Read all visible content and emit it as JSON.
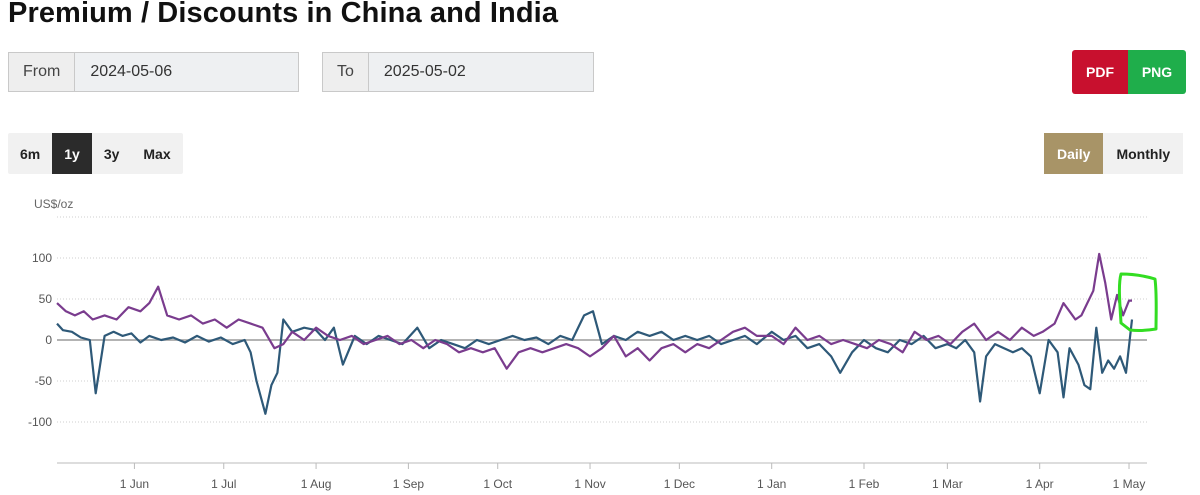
{
  "title": "Premium / Discounts in China and India",
  "date_range": {
    "from_label": "From",
    "from_value": "2024-05-06",
    "to_label": "To",
    "to_value": "2025-05-02"
  },
  "export": {
    "pdf_label": "PDF",
    "png_label": "PNG"
  },
  "range_buttons": [
    {
      "label": "6m",
      "active": false
    },
    {
      "label": "1y",
      "active": true
    },
    {
      "label": "3y",
      "active": false
    },
    {
      "label": "Max",
      "active": false
    }
  ],
  "frequency_buttons": [
    {
      "label": "Daily",
      "active": true
    },
    {
      "label": "Monthly",
      "active": false
    }
  ],
  "colors": {
    "series_a": "#2e5978",
    "series_b": "#7a3c8e",
    "annotation": "#33dd22"
  },
  "chart_data": {
    "type": "line",
    "title": "",
    "unit_label": "US$/oz",
    "ylim": [
      -130,
      150
    ],
    "yticks": [
      100,
      50,
      0,
      -50,
      -100
    ],
    "xlim": [
      "2024-05-06",
      "2025-05-02"
    ],
    "xticks": [
      {
        "date": "2024-06-01",
        "label": "1 Jun"
      },
      {
        "date": "2024-07-01",
        "label": "1 Jul"
      },
      {
        "date": "2024-08-01",
        "label": "1 Aug"
      },
      {
        "date": "2024-09-01",
        "label": "1 Sep"
      },
      {
        "date": "2024-10-01",
        "label": "1 Oct"
      },
      {
        "date": "2024-11-01",
        "label": "1 Nov"
      },
      {
        "date": "2024-12-01",
        "label": "1 Dec"
      },
      {
        "date": "2025-01-01",
        "label": "1 Jan"
      },
      {
        "date": "2025-02-01",
        "label": "1 Feb"
      },
      {
        "date": "2025-03-01",
        "label": "1 Mar"
      },
      {
        "date": "2025-04-01",
        "label": "1 Apr"
      },
      {
        "date": "2025-05-01",
        "label": "1 May"
      }
    ],
    "grid": true,
    "series": [
      {
        "color": "#2e5978",
        "points": [
          [
            "2024-05-06",
            20
          ],
          [
            "2024-05-08",
            12
          ],
          [
            "2024-05-11",
            10
          ],
          [
            "2024-05-14",
            3
          ],
          [
            "2024-05-17",
            0
          ],
          [
            "2024-05-19",
            -65
          ],
          [
            "2024-05-22",
            5
          ],
          [
            "2024-05-25",
            10
          ],
          [
            "2024-05-28",
            5
          ],
          [
            "2024-05-31",
            8
          ],
          [
            "2024-06-03",
            -3
          ],
          [
            "2024-06-06",
            5
          ],
          [
            "2024-06-10",
            0
          ],
          [
            "2024-06-14",
            3
          ],
          [
            "2024-06-18",
            -3
          ],
          [
            "2024-06-22",
            5
          ],
          [
            "2024-06-26",
            -2
          ],
          [
            "2024-06-30",
            3
          ],
          [
            "2024-07-04",
            -5
          ],
          [
            "2024-07-08",
            0
          ],
          [
            "2024-07-10",
            -15
          ],
          [
            "2024-07-12",
            -50
          ],
          [
            "2024-07-15",
            -90
          ],
          [
            "2024-07-17",
            -55
          ],
          [
            "2024-07-19",
            -40
          ],
          [
            "2024-07-21",
            25
          ],
          [
            "2024-07-24",
            10
          ],
          [
            "2024-07-28",
            15
          ],
          [
            "2024-08-01",
            12
          ],
          [
            "2024-08-04",
            0
          ],
          [
            "2024-08-07",
            15
          ],
          [
            "2024-08-10",
            -30
          ],
          [
            "2024-08-14",
            5
          ],
          [
            "2024-08-18",
            -5
          ],
          [
            "2024-08-22",
            5
          ],
          [
            "2024-08-26",
            0
          ],
          [
            "2024-08-30",
            -5
          ],
          [
            "2024-09-04",
            15
          ],
          [
            "2024-09-08",
            -10
          ],
          [
            "2024-09-12",
            0
          ],
          [
            "2024-09-16",
            -5
          ],
          [
            "2024-09-20",
            -10
          ],
          [
            "2024-09-24",
            0
          ],
          [
            "2024-09-28",
            -5
          ],
          [
            "2024-10-02",
            0
          ],
          [
            "2024-10-06",
            5
          ],
          [
            "2024-10-10",
            0
          ],
          [
            "2024-10-14",
            3
          ],
          [
            "2024-10-18",
            -5
          ],
          [
            "2024-10-22",
            5
          ],
          [
            "2024-10-26",
            0
          ],
          [
            "2024-10-30",
            30
          ],
          [
            "2024-11-02",
            35
          ],
          [
            "2024-11-05",
            -5
          ],
          [
            "2024-11-09",
            5
          ],
          [
            "2024-11-13",
            0
          ],
          [
            "2024-11-17",
            10
          ],
          [
            "2024-11-21",
            5
          ],
          [
            "2024-11-25",
            10
          ],
          [
            "2024-11-29",
            0
          ],
          [
            "2024-12-03",
            5
          ],
          [
            "2024-12-07",
            0
          ],
          [
            "2024-12-11",
            5
          ],
          [
            "2024-12-15",
            -5
          ],
          [
            "2024-12-19",
            0
          ],
          [
            "2024-12-23",
            5
          ],
          [
            "2024-12-27",
            -5
          ],
          [
            "2025-01-01",
            10
          ],
          [
            "2025-01-05",
            0
          ],
          [
            "2025-01-09",
            5
          ],
          [
            "2025-01-13",
            -10
          ],
          [
            "2025-01-17",
            -5
          ],
          [
            "2025-01-21",
            -20
          ],
          [
            "2025-01-24",
            -40
          ],
          [
            "2025-01-28",
            -15
          ],
          [
            "2025-02-01",
            0
          ],
          [
            "2025-02-05",
            -10
          ],
          [
            "2025-02-09",
            -15
          ],
          [
            "2025-02-13",
            0
          ],
          [
            "2025-02-17",
            -5
          ],
          [
            "2025-02-21",
            5
          ],
          [
            "2025-02-25",
            -10
          ],
          [
            "2025-03-01",
            -5
          ],
          [
            "2025-03-04",
            -10
          ],
          [
            "2025-03-07",
            0
          ],
          [
            "2025-03-10",
            -15
          ],
          [
            "2025-03-12",
            -75
          ],
          [
            "2025-03-14",
            -20
          ],
          [
            "2025-03-17",
            -5
          ],
          [
            "2025-03-20",
            -10
          ],
          [
            "2025-03-23",
            -15
          ],
          [
            "2025-03-26",
            -10
          ],
          [
            "2025-03-29",
            -20
          ],
          [
            "2025-04-01",
            -65
          ],
          [
            "2025-04-04",
            0
          ],
          [
            "2025-04-07",
            -15
          ],
          [
            "2025-04-09",
            -70
          ],
          [
            "2025-04-11",
            -10
          ],
          [
            "2025-04-14",
            -30
          ],
          [
            "2025-04-16",
            -55
          ],
          [
            "2025-04-18",
            -60
          ],
          [
            "2025-04-20",
            15
          ],
          [
            "2025-04-22",
            -40
          ],
          [
            "2025-04-24",
            -25
          ],
          [
            "2025-04-26",
            -35
          ],
          [
            "2025-04-28",
            -20
          ],
          [
            "2025-04-30",
            -40
          ],
          [
            "2025-05-02",
            25
          ]
        ]
      },
      {
        "color": "#7a3c8e",
        "points": [
          [
            "2024-05-06",
            45
          ],
          [
            "2024-05-09",
            35
          ],
          [
            "2024-05-12",
            30
          ],
          [
            "2024-05-15",
            35
          ],
          [
            "2024-05-18",
            25
          ],
          [
            "2024-05-22",
            30
          ],
          [
            "2024-05-26",
            25
          ],
          [
            "2024-05-30",
            40
          ],
          [
            "2024-06-03",
            35
          ],
          [
            "2024-06-06",
            45
          ],
          [
            "2024-06-09",
            65
          ],
          [
            "2024-06-12",
            30
          ],
          [
            "2024-06-16",
            25
          ],
          [
            "2024-06-20",
            30
          ],
          [
            "2024-06-24",
            20
          ],
          [
            "2024-06-28",
            25
          ],
          [
            "2024-07-02",
            15
          ],
          [
            "2024-07-06",
            25
          ],
          [
            "2024-07-10",
            20
          ],
          [
            "2024-07-14",
            15
          ],
          [
            "2024-07-18",
            -10
          ],
          [
            "2024-07-21",
            -5
          ],
          [
            "2024-07-24",
            10
          ],
          [
            "2024-07-28",
            0
          ],
          [
            "2024-08-01",
            15
          ],
          [
            "2024-08-05",
            5
          ],
          [
            "2024-08-09",
            0
          ],
          [
            "2024-08-13",
            5
          ],
          [
            "2024-08-17",
            -5
          ],
          [
            "2024-08-21",
            0
          ],
          [
            "2024-08-25",
            5
          ],
          [
            "2024-08-29",
            -5
          ],
          [
            "2024-09-02",
            0
          ],
          [
            "2024-09-06",
            -10
          ],
          [
            "2024-09-10",
            0
          ],
          [
            "2024-09-14",
            -5
          ],
          [
            "2024-09-18",
            -15
          ],
          [
            "2024-09-22",
            -10
          ],
          [
            "2024-09-26",
            -15
          ],
          [
            "2024-09-30",
            -10
          ],
          [
            "2024-10-04",
            -35
          ],
          [
            "2024-10-08",
            -15
          ],
          [
            "2024-10-12",
            -10
          ],
          [
            "2024-10-16",
            -15
          ],
          [
            "2024-10-20",
            -10
          ],
          [
            "2024-10-24",
            -5
          ],
          [
            "2024-10-28",
            -10
          ],
          [
            "2024-11-01",
            -20
          ],
          [
            "2024-11-05",
            -10
          ],
          [
            "2024-11-09",
            5
          ],
          [
            "2024-11-13",
            -20
          ],
          [
            "2024-11-17",
            -10
          ],
          [
            "2024-11-21",
            -25
          ],
          [
            "2024-11-25",
            -10
          ],
          [
            "2024-11-29",
            -5
          ],
          [
            "2024-12-03",
            -15
          ],
          [
            "2024-12-07",
            -5
          ],
          [
            "2024-12-11",
            -10
          ],
          [
            "2024-12-15",
            0
          ],
          [
            "2024-12-19",
            10
          ],
          [
            "2024-12-23",
            15
          ],
          [
            "2024-12-27",
            5
          ],
          [
            "2025-01-01",
            5
          ],
          [
            "2025-01-05",
            -5
          ],
          [
            "2025-01-09",
            15
          ],
          [
            "2025-01-13",
            0
          ],
          [
            "2025-01-17",
            5
          ],
          [
            "2025-01-21",
            -5
          ],
          [
            "2025-01-25",
            0
          ],
          [
            "2025-01-29",
            -5
          ],
          [
            "2025-02-02",
            -10
          ],
          [
            "2025-02-06",
            0
          ],
          [
            "2025-02-10",
            -5
          ],
          [
            "2025-02-14",
            -15
          ],
          [
            "2025-02-18",
            10
          ],
          [
            "2025-02-22",
            0
          ],
          [
            "2025-02-26",
            5
          ],
          [
            "2025-03-02",
            -5
          ],
          [
            "2025-03-06",
            10
          ],
          [
            "2025-03-10",
            20
          ],
          [
            "2025-03-14",
            0
          ],
          [
            "2025-03-18",
            10
          ],
          [
            "2025-03-22",
            0
          ],
          [
            "2025-03-26",
            15
          ],
          [
            "2025-03-30",
            5
          ],
          [
            "2025-04-02",
            10
          ],
          [
            "2025-04-06",
            20
          ],
          [
            "2025-04-09",
            45
          ],
          [
            "2025-04-11",
            35
          ],
          [
            "2025-04-13",
            25
          ],
          [
            "2025-04-15",
            30
          ],
          [
            "2025-04-17",
            45
          ],
          [
            "2025-04-19",
            60
          ],
          [
            "2025-04-21",
            105
          ],
          [
            "2025-04-23",
            70
          ],
          [
            "2025-04-25",
            25
          ],
          [
            "2025-04-27",
            55
          ],
          [
            "2025-04-29",
            30
          ],
          [
            "2025-05-01",
            48
          ],
          [
            "2025-05-02",
            48
          ]
        ]
      }
    ]
  }
}
